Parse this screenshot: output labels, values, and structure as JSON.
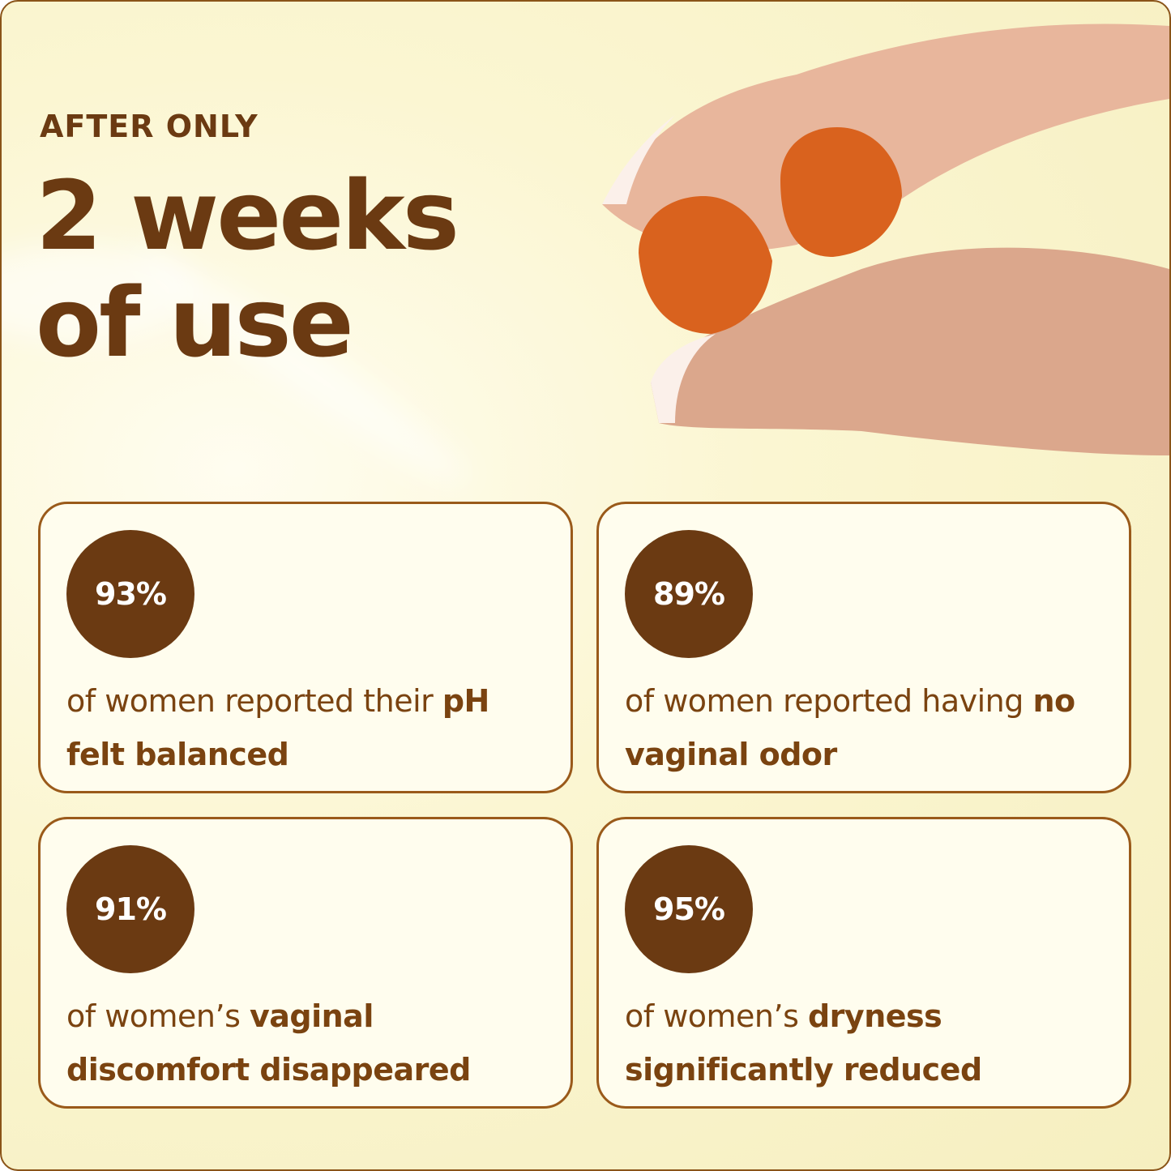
{
  "header": {
    "eyebrow": "AFTER ONLY",
    "line1": "2 weeks",
    "line2": "of use"
  },
  "colors": {
    "brown": "#6b3a12",
    "text": "#7a4310",
    "card_bg": "#fffdee",
    "border": "#9a5a1a",
    "gummy": "#d9621e"
  },
  "image": {
    "icon": "hand-holding-gummies"
  },
  "cards": [
    {
      "stat": "93%",
      "pre": "of women reported their ",
      "bold": "pH felt balanced"
    },
    {
      "stat": "89%",
      "pre": "of women reported having ",
      "bold": "no vaginal odor"
    },
    {
      "stat": "91%",
      "pre": "of women’s ",
      "bold": "vaginal discomfort disappeared"
    },
    {
      "stat": "95%",
      "pre": "of women’s ",
      "bold": "dryness significantly reduced"
    }
  ]
}
